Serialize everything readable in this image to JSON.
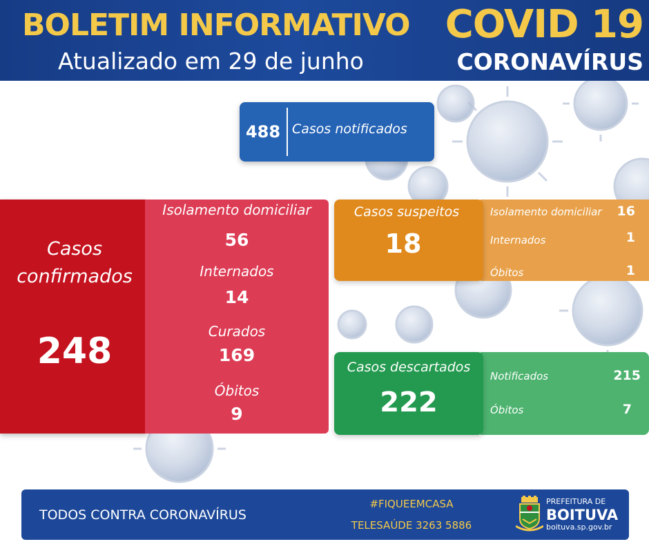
{
  "header": {
    "title": "BOLETIM INFORMATIVO",
    "subtitle": "Atualizado em 29 de junho",
    "covid": "COVID 19",
    "corona": "CORONAVÍRUS"
  },
  "notified": {
    "value": "488",
    "label": "Casos notificados"
  },
  "confirmed": {
    "label_line1": "Casos",
    "label_line2": "confirmados",
    "value": "248",
    "details": [
      {
        "label": "Isolamento domiciliar",
        "value": "56"
      },
      {
        "label": "Internados",
        "value": "14"
      },
      {
        "label": "Curados",
        "value": "169"
      },
      {
        "label": "Óbitos",
        "value": "9"
      }
    ]
  },
  "suspected": {
    "label": "Casos suspeitos",
    "value": "18",
    "details": [
      {
        "label": "Isolamento domiciliar",
        "value": "16"
      },
      {
        "label": "Internados",
        "value": "1"
      },
      {
        "label": "Óbitos",
        "value": "1"
      }
    ]
  },
  "discarded": {
    "label": "Casos descartados",
    "value": "222",
    "details": [
      {
        "label": "Notificados",
        "value": "215"
      },
      {
        "label": "Óbitos",
        "value": "7"
      }
    ]
  },
  "footer": {
    "slogan": "TODOS CONTRA CORONAVÍRUS",
    "hashtag": "#FIQUEEMCASA",
    "telesaude": "TELESAÚDE 3263 5886",
    "prefeitura": "PREFEITURA DE",
    "city": "BOITUVA",
    "site": "boituva.sp.gov.br",
    "crest_icon": "city-crest-icon"
  },
  "colors": {
    "header_blue": "#1d4a9c",
    "header_yellow": "#f4c94a",
    "notified_blue": "#2563b5",
    "confirmed_red": "#c4121f",
    "confirmed_pink": "#dd3c55",
    "suspected_orange": "#e08a1e",
    "discarded_green": "#239a4f"
  }
}
